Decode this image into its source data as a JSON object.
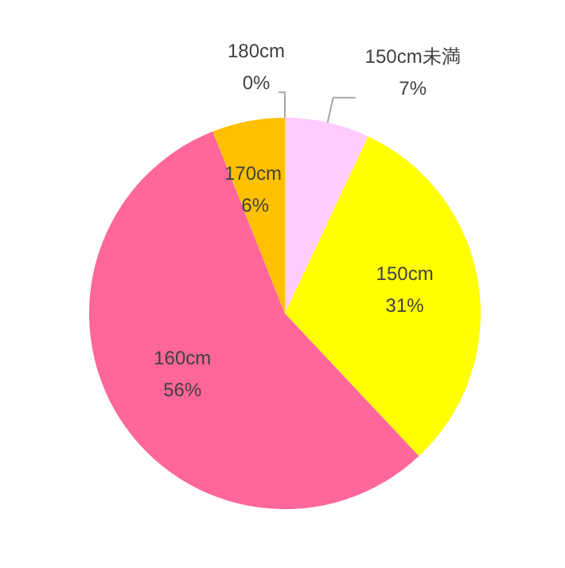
{
  "chart_data": {
    "type": "pie",
    "categories": [
      "150cm未満",
      "150cm",
      "160cm",
      "170cm",
      "180cm"
    ],
    "values": [
      7,
      31,
      56,
      6,
      0
    ],
    "colors": [
      "#ffccff",
      "#ffff00",
      "#ff6699",
      "#ffc000",
      "#5b9bd5"
    ],
    "value_labels": [
      "7%",
      "31%",
      "56%",
      "6%",
      "0%"
    ]
  }
}
